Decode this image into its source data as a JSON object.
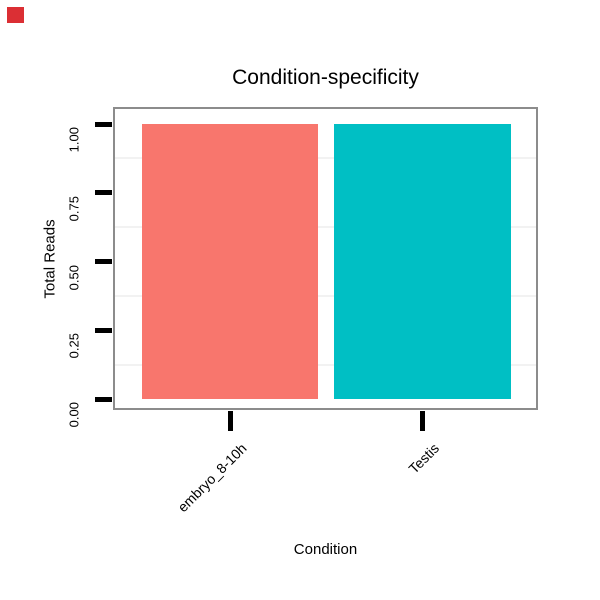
{
  "page": {
    "background_color": "#ffffff"
  },
  "overlay_marker": {
    "name": "red-square",
    "color": "#DB2F34"
  },
  "chart_data": {
    "type": "bar",
    "title": "Condition-specificity",
    "xlabel": "Condition",
    "ylabel": "Total Reads",
    "categories": [
      "embryo_8-10h",
      "Testis"
    ],
    "values": [
      1.0,
      1.0
    ],
    "bar_colors": [
      "#F8766D",
      "#00BFC4"
    ],
    "ylim": [
      0,
      1
    ],
    "ytick_values": [
      0,
      0.25,
      0.5,
      0.75,
      1
    ],
    "ytick_labels": [
      "0.00",
      "0.25",
      "0.50",
      "0.75",
      "1.00"
    ],
    "minor_gridline_values": [
      0.125,
      0.375,
      0.625,
      0.875
    ],
    "grid": "horizontal minor gridlines only, very light gray",
    "legend_position": "none",
    "x_tick_label_rotation_deg": 45,
    "y_tick_label_rotation_deg": 90,
    "panel_border_color": "#8C8C8C",
    "minor_gridline_color": "#F2F2F2",
    "axis_tick_color": "#000000",
    "text_color": "#000000"
  }
}
